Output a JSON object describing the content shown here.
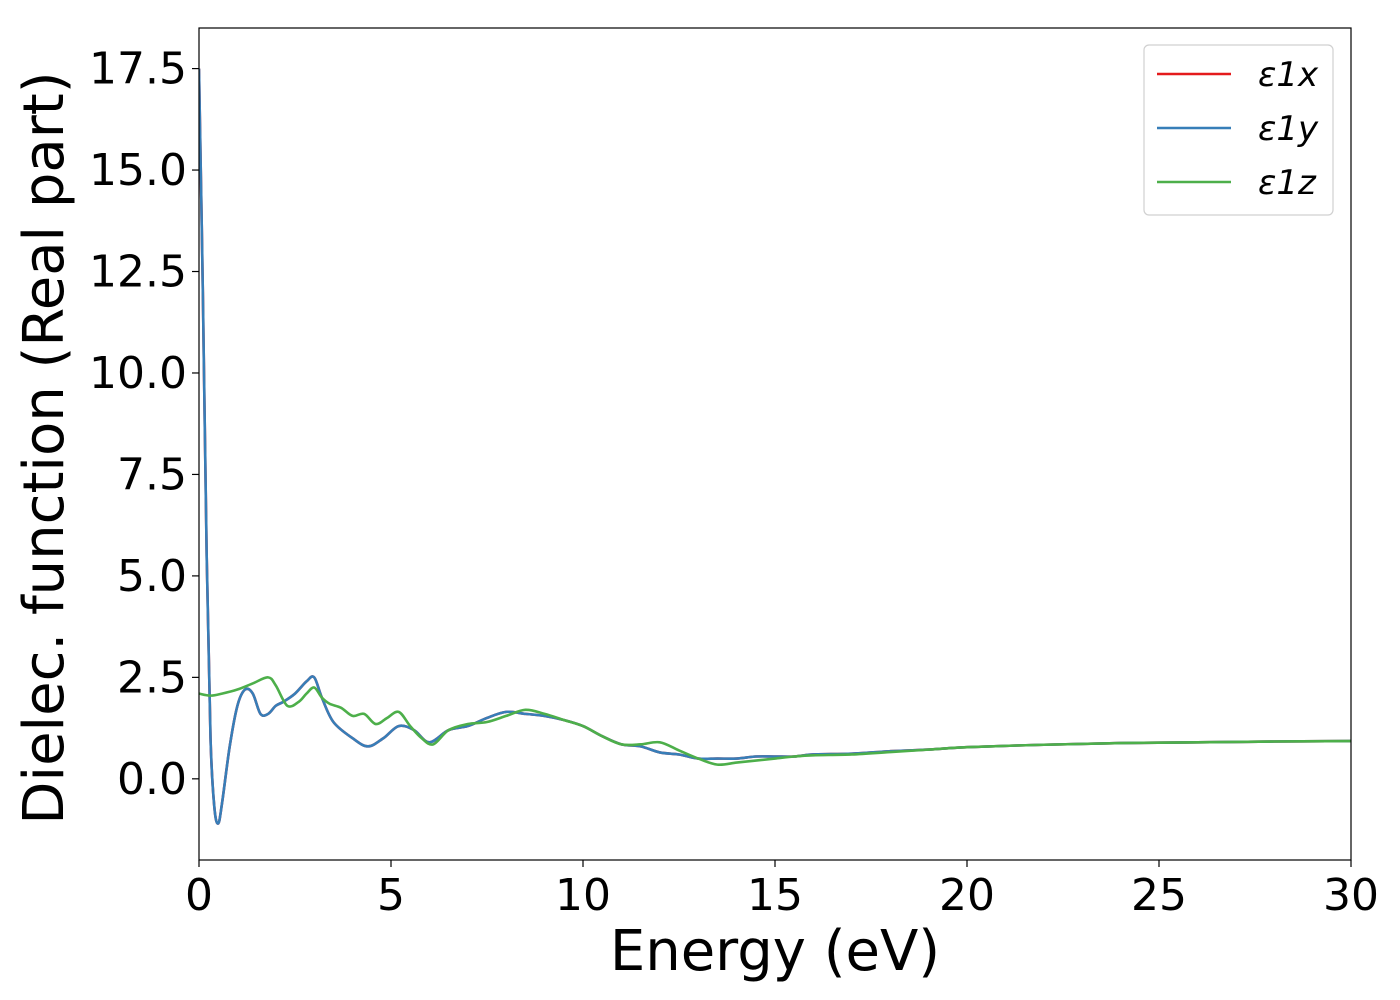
{
  "chart_data": {
    "type": "line",
    "title": "",
    "xlabel": "Energy (eV)",
    "ylabel": "Dielec. function (Real part)",
    "xlim": [
      0,
      30
    ],
    "ylim": [
      -2,
      18.5
    ],
    "xticks": [
      0,
      5,
      10,
      15,
      20,
      25,
      30
    ],
    "xtick_labels": [
      "0",
      "5",
      "10",
      "15",
      "20",
      "25",
      "30"
    ],
    "yticks": [
      0,
      2.5,
      5,
      7.5,
      10,
      12.5,
      15,
      17.5
    ],
    "ytick_labels": [
      "0.0",
      "2.5",
      "5.0",
      "7.5",
      "10.0",
      "12.5",
      "15.0",
      "17.5"
    ],
    "grid": false,
    "legend_position": "top-right",
    "series": [
      {
        "name": "ε1x",
        "color": "#e41a1c",
        "x": [
          0,
          0.1,
          0.2,
          0.3,
          0.4,
          0.5,
          0.6,
          0.8,
          1.0,
          1.2,
          1.4,
          1.6,
          1.8,
          2.0,
          2.2,
          2.5,
          2.8,
          3.0,
          3.2,
          3.5,
          4.0,
          4.4,
          4.8,
          5.2,
          5.6,
          6.0,
          6.5,
          7.0,
          7.5,
          8.0,
          8.5,
          9.0,
          9.5,
          10.0,
          10.5,
          11.0,
          11.5,
          12.0,
          12.5,
          13.0,
          13.5,
          14.0,
          14.5,
          15.0,
          15.5,
          16.0,
          17.0,
          18.0,
          19.0,
          20.0,
          22.0,
          24.0,
          26.0,
          28.0,
          30.0
        ],
        "y": [
          17.5,
          12.0,
          5.5,
          1.0,
          -0.7,
          -1.1,
          -0.6,
          0.8,
          1.8,
          2.2,
          2.1,
          1.6,
          1.6,
          1.8,
          1.9,
          2.1,
          2.4,
          2.5,
          2.0,
          1.4,
          1.0,
          0.8,
          1.0,
          1.3,
          1.2,
          0.9,
          1.2,
          1.3,
          1.5,
          1.65,
          1.6,
          1.55,
          1.45,
          1.3,
          1.05,
          0.85,
          0.8,
          0.65,
          0.6,
          0.5,
          0.5,
          0.5,
          0.55,
          0.55,
          0.55,
          0.6,
          0.62,
          0.68,
          0.72,
          0.78,
          0.84,
          0.88,
          0.9,
          0.92,
          0.93
        ]
      },
      {
        "name": "ε1y",
        "color": "#377eb8",
        "x": [
          0,
          0.1,
          0.2,
          0.3,
          0.4,
          0.5,
          0.6,
          0.8,
          1.0,
          1.2,
          1.4,
          1.6,
          1.8,
          2.0,
          2.2,
          2.5,
          2.8,
          3.0,
          3.2,
          3.5,
          4.0,
          4.4,
          4.8,
          5.2,
          5.6,
          6.0,
          6.5,
          7.0,
          7.5,
          8.0,
          8.5,
          9.0,
          9.5,
          10.0,
          10.5,
          11.0,
          11.5,
          12.0,
          12.5,
          13.0,
          13.5,
          14.0,
          14.5,
          15.0,
          15.5,
          16.0,
          17.0,
          18.0,
          19.0,
          20.0,
          22.0,
          24.0,
          26.0,
          28.0,
          30.0
        ],
        "y": [
          17.5,
          12.0,
          5.5,
          1.0,
          -0.7,
          -1.1,
          -0.6,
          0.8,
          1.8,
          2.2,
          2.1,
          1.6,
          1.6,
          1.8,
          1.9,
          2.1,
          2.4,
          2.5,
          2.0,
          1.4,
          1.0,
          0.8,
          1.0,
          1.3,
          1.2,
          0.9,
          1.2,
          1.3,
          1.5,
          1.65,
          1.6,
          1.55,
          1.45,
          1.3,
          1.05,
          0.85,
          0.8,
          0.65,
          0.6,
          0.5,
          0.5,
          0.5,
          0.55,
          0.55,
          0.55,
          0.6,
          0.62,
          0.68,
          0.72,
          0.78,
          0.84,
          0.88,
          0.9,
          0.92,
          0.93
        ]
      },
      {
        "name": "ε1z",
        "color": "#4daf4a",
        "x": [
          0,
          0.3,
          0.6,
          1.0,
          1.4,
          1.8,
          2.0,
          2.3,
          2.6,
          2.8,
          3.0,
          3.2,
          3.4,
          3.7,
          4.0,
          4.3,
          4.6,
          4.9,
          5.2,
          5.5,
          5.8,
          6.1,
          6.5,
          7.0,
          7.5,
          8.0,
          8.5,
          9.0,
          9.5,
          10.0,
          10.5,
          11.0,
          11.5,
          12.0,
          12.5,
          13.0,
          13.5,
          14.0,
          14.5,
          15.0,
          15.5,
          16.0,
          17.0,
          18.0,
          19.0,
          20.0,
          22.0,
          24.0,
          26.0,
          28.0,
          30.0
        ],
        "y": [
          2.1,
          2.05,
          2.1,
          2.2,
          2.35,
          2.5,
          2.3,
          1.8,
          1.9,
          2.1,
          2.25,
          2.0,
          1.85,
          1.75,
          1.55,
          1.6,
          1.35,
          1.5,
          1.65,
          1.3,
          1.0,
          0.85,
          1.2,
          1.35,
          1.4,
          1.55,
          1.7,
          1.6,
          1.45,
          1.3,
          1.05,
          0.85,
          0.85,
          0.9,
          0.7,
          0.5,
          0.35,
          0.4,
          0.45,
          0.5,
          0.55,
          0.58,
          0.6,
          0.66,
          0.72,
          0.78,
          0.84,
          0.88,
          0.9,
          0.92,
          0.93
        ]
      }
    ]
  }
}
